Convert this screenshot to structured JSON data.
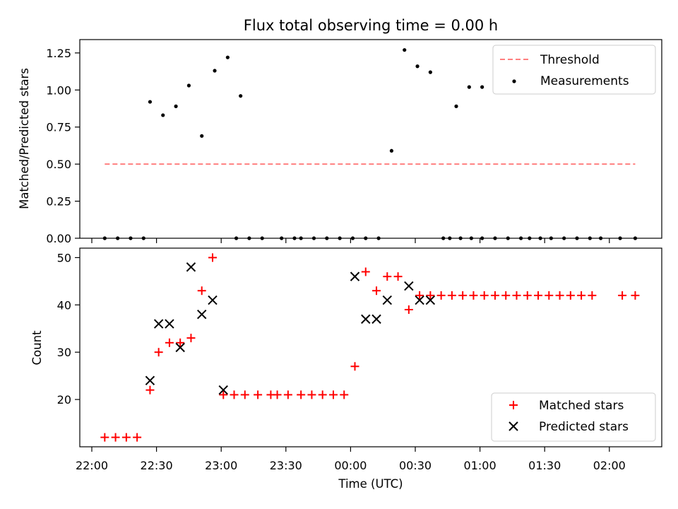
{
  "chart_data": [
    {
      "type": "scatter",
      "title": "Flux total observing time = 0.00 h",
      "ylabel": "Matched/Predicted stars",
      "xlabel": "",
      "ylim": [
        0,
        1.34
      ],
      "yticks": [
        "0.00",
        "0.25",
        "0.50",
        "0.75",
        "1.00",
        "1.25"
      ],
      "ytick_values": [
        0,
        0.25,
        0.5,
        0.75,
        1.0,
        1.25
      ],
      "legend_position": "top-right",
      "threshold": {
        "name": "Threshold",
        "value": 0.5,
        "x_range": [
          "22:06",
          "02:12"
        ],
        "color": "#ff7f7f",
        "style": "dashed"
      },
      "series": [
        {
          "name": "Measurements",
          "color": "#000000",
          "marker": "dot",
          "points": [
            [
              "22:06",
              0
            ],
            [
              "22:12",
              0
            ],
            [
              "22:18",
              0
            ],
            [
              "22:24",
              0
            ],
            [
              "22:27",
              0.92
            ],
            [
              "22:33",
              0.83
            ],
            [
              "22:39",
              0.89
            ],
            [
              "22:45",
              1.03
            ],
            [
              "22:51",
              0.69
            ],
            [
              "22:57",
              1.13
            ],
            [
              "23:03",
              1.22
            ],
            [
              "23:09",
              0.96
            ],
            [
              "23:07",
              0
            ],
            [
              "23:13",
              0
            ],
            [
              "23:19",
              0
            ],
            [
              "23:28",
              0
            ],
            [
              "23:34",
              0
            ],
            [
              "23:37",
              0
            ],
            [
              "23:43",
              0
            ],
            [
              "23:49",
              0
            ],
            [
              "23:55",
              0
            ],
            [
              "00:01",
              0
            ],
            [
              "00:07",
              0
            ],
            [
              "00:13",
              0
            ],
            [
              "00:19",
              0.59
            ],
            [
              "00:25",
              1.27
            ],
            [
              "00:31",
              1.16
            ],
            [
              "00:37",
              1.12
            ],
            [
              "00:43",
              0
            ],
            [
              "00:49",
              0.89
            ],
            [
              "00:55",
              1.02
            ],
            [
              "01:01",
              1.02
            ],
            [
              "00:46",
              0
            ],
            [
              "00:51",
              0
            ],
            [
              "00:56",
              0
            ],
            [
              "01:01",
              0
            ],
            [
              "01:07",
              0
            ],
            [
              "01:13",
              0
            ],
            [
              "01:19",
              0
            ],
            [
              "01:23",
              0
            ],
            [
              "01:28",
              0
            ],
            [
              "01:33",
              0
            ],
            [
              "01:39",
              0
            ],
            [
              "01:45",
              0
            ],
            [
              "01:51",
              0
            ],
            [
              "01:56",
              0
            ],
            [
              "02:05",
              0
            ],
            [
              "02:12",
              0
            ]
          ]
        }
      ]
    },
    {
      "type": "scatter",
      "title": "",
      "ylabel": "Count",
      "xlabel": "Time (UTC)",
      "ylim": [
        10,
        52
      ],
      "yticks": [
        "20",
        "30",
        "40",
        "50"
      ],
      "ytick_values": [
        20,
        30,
        40,
        50
      ],
      "x_ticks": [
        "22:00",
        "22:30",
        "23:00",
        "23:30",
        "00:00",
        "00:30",
        "01:00",
        "01:30",
        "02:00"
      ],
      "legend_position": "bottom-right",
      "series": [
        {
          "name": "Matched stars",
          "color": "#ff0000",
          "marker": "plus",
          "points": [
            [
              "22:06",
              12
            ],
            [
              "22:11",
              12
            ],
            [
              "22:16",
              12
            ],
            [
              "22:21",
              12
            ],
            [
              "22:27",
              22
            ],
            [
              "22:31",
              30
            ],
            [
              "22:36",
              32
            ],
            [
              "22:41",
              32
            ],
            [
              "22:46",
              33
            ],
            [
              "22:51",
              43
            ],
            [
              "22:56",
              50
            ],
            [
              "23:01",
              21
            ],
            [
              "23:06",
              21
            ],
            [
              "23:11",
              21
            ],
            [
              "23:17",
              21
            ],
            [
              "23:23",
              21
            ],
            [
              "23:26",
              21
            ],
            [
              "23:31",
              21
            ],
            [
              "23:37",
              21
            ],
            [
              "23:42",
              21
            ],
            [
              "23:47",
              21
            ],
            [
              "23:52",
              21
            ],
            [
              "23:57",
              21
            ],
            [
              "00:02",
              27
            ],
            [
              "00:07",
              47
            ],
            [
              "00:12",
              43
            ],
            [
              "00:17",
              46
            ],
            [
              "00:22",
              46
            ],
            [
              "00:27",
              39
            ],
            [
              "00:32",
              42
            ],
            [
              "00:37",
              42
            ],
            [
              "00:42",
              42
            ],
            [
              "00:47",
              42
            ],
            [
              "00:52",
              42
            ],
            [
              "00:57",
              42
            ],
            [
              "01:02",
              42
            ],
            [
              "01:07",
              42
            ],
            [
              "01:12",
              42
            ],
            [
              "01:17",
              42
            ],
            [
              "01:22",
              42
            ],
            [
              "01:27",
              42
            ],
            [
              "01:32",
              42
            ],
            [
              "01:37",
              42
            ],
            [
              "01:42",
              42
            ],
            [
              "01:47",
              42
            ],
            [
              "01:52",
              42
            ],
            [
              "02:06",
              42
            ],
            [
              "02:12",
              42
            ]
          ]
        },
        {
          "name": "Predicted stars",
          "color": "#000000",
          "marker": "x",
          "points": [
            [
              "22:27",
              24
            ],
            [
              "22:31",
              36
            ],
            [
              "22:36",
              36
            ],
            [
              "22:41",
              31
            ],
            [
              "22:46",
              48
            ],
            [
              "22:51",
              38
            ],
            [
              "22:56",
              41
            ],
            [
              "23:01",
              22
            ],
            [
              "00:02",
              46
            ],
            [
              "00:07",
              37
            ],
            [
              "00:12",
              37
            ],
            [
              "00:17",
              41
            ],
            [
              "00:27",
              44
            ],
            [
              "00:32",
              41
            ],
            [
              "00:37",
              41
            ]
          ]
        }
      ]
    }
  ]
}
